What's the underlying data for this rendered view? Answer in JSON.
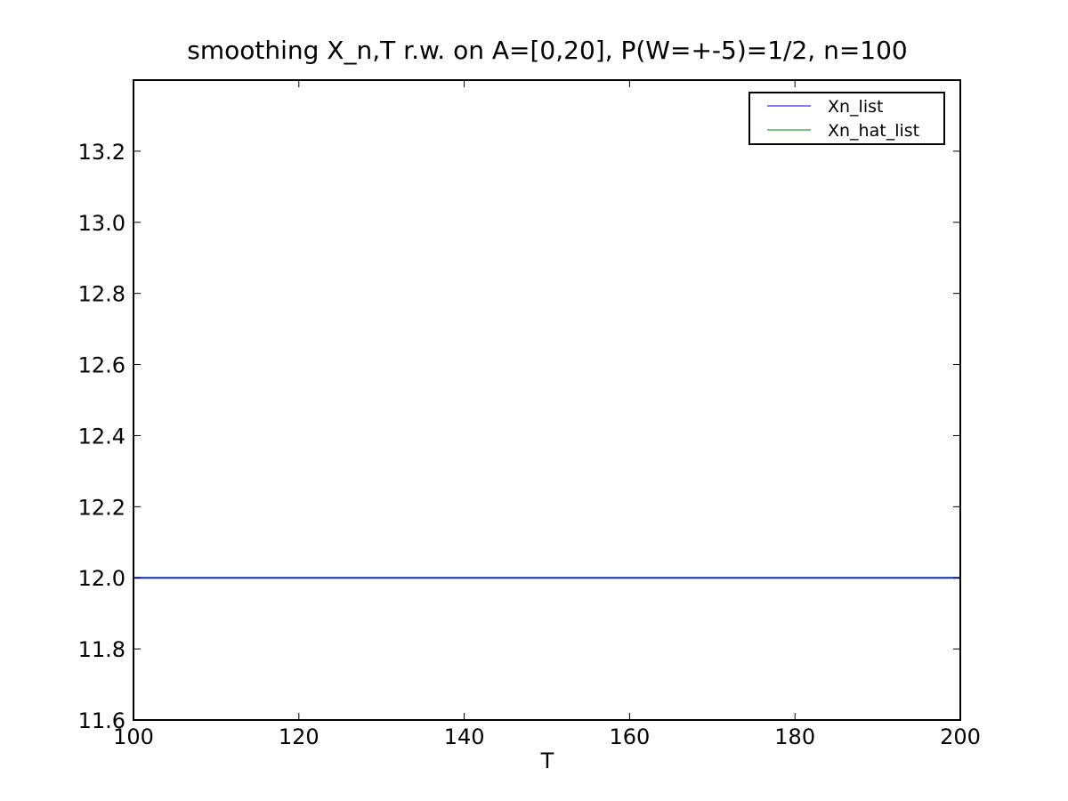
{
  "chart_data": {
    "type": "line",
    "title": "smoothing X_n,T r.w. on A=[0,20], P(W=+-5)=1/2, n=100",
    "xlabel": "T",
    "ylabel": "",
    "xlim": [
      100,
      200
    ],
    "ylim": [
      11.6,
      13.4
    ],
    "x_ticks": [
      100,
      120,
      140,
      160,
      180,
      200
    ],
    "x_tick_labels": [
      "100",
      "120",
      "140",
      "160",
      "180",
      "200"
    ],
    "y_ticks": [
      11.6,
      11.8,
      12.0,
      12.2,
      12.4,
      12.6,
      12.8,
      13.0,
      13.2
    ],
    "y_tick_labels": [
      "11.6",
      "11.8",
      "12.0",
      "12.2",
      "12.4",
      "12.6",
      "12.8",
      "13.0",
      "13.2"
    ],
    "grid": false,
    "legend_position": "top-right",
    "series": [
      {
        "name": "Xn_list",
        "color": "#0000ff",
        "x": [
          100,
          200
        ],
        "values": [
          12.0,
          12.0
        ]
      },
      {
        "name": "Xn_hat_list",
        "color": "#008000",
        "x": [
          100,
          200
        ],
        "values": [
          12.0,
          12.0
        ]
      }
    ]
  }
}
